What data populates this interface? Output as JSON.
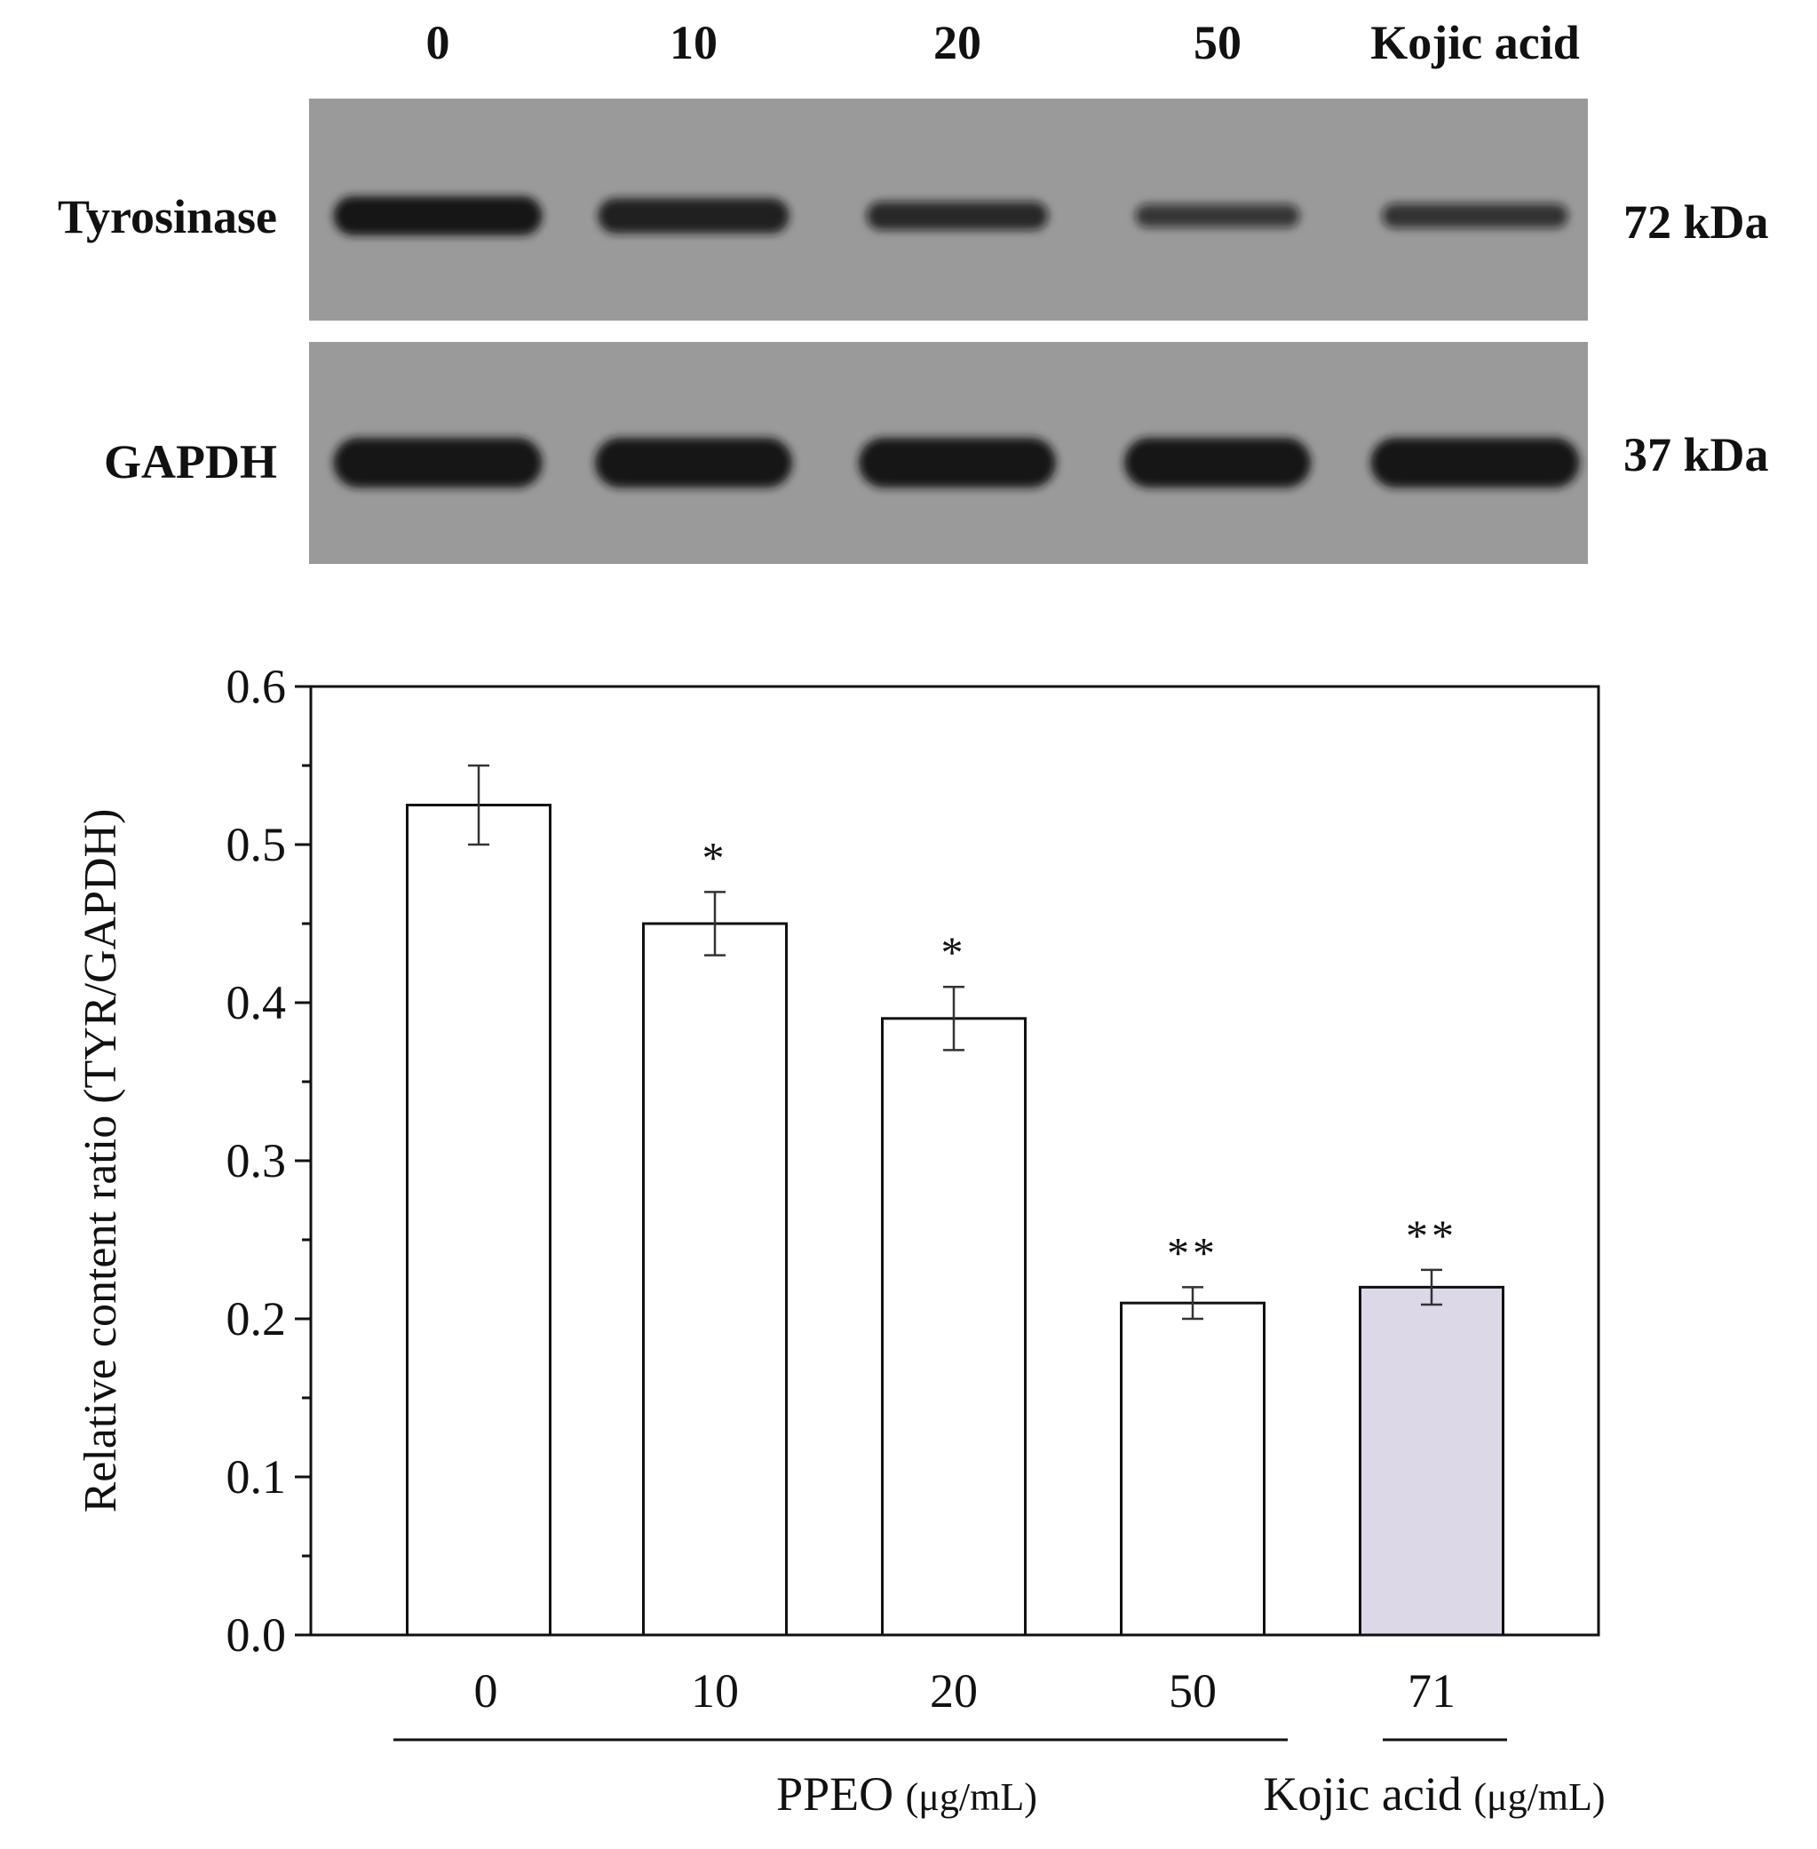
{
  "blot": {
    "lanes": [
      "0",
      "10",
      "20",
      "50",
      "Kojic acid"
    ],
    "proteins": [
      {
        "name": "Tyrosinase",
        "size": "72 kDa",
        "intensities": [
          1.0,
          0.85,
          0.6,
          0.4,
          0.45
        ]
      },
      {
        "name": "GAPDH",
        "size": "37 kDa",
        "intensities": [
          1.0,
          1.0,
          1.0,
          1.0,
          1.0
        ]
      }
    ],
    "colors": {
      "membrane": "#9a9a9a",
      "band": "#141414"
    }
  },
  "chart_data": {
    "type": "bar",
    "categories": [
      "0",
      "10",
      "20",
      "50",
      "71"
    ],
    "values": [
      0.525,
      0.45,
      0.39,
      0.21,
      0.22
    ],
    "errors": [
      0.025,
      0.02,
      0.02,
      0.01,
      0.011
    ],
    "significance": [
      "",
      "*",
      "*",
      "**",
      "**"
    ],
    "bar_colors": [
      "#ffffff",
      "#ffffff",
      "#ffffff",
      "#ffffff",
      "#dcd8e8"
    ],
    "ylabel": "Relative content ratio (TYR/GAPDH)",
    "ylim": [
      0,
      0.6
    ],
    "yticks": [
      "0.0",
      "0.1",
      "0.2",
      "0.3",
      "0.4",
      "0.5",
      "0.6"
    ],
    "groups": [
      {
        "name": "PPEO",
        "unit": "(μg/mL)",
        "categories": [
          "0",
          "10",
          "20",
          "50"
        ]
      },
      {
        "name": "Kojic acid",
        "unit": "(μg/mL)",
        "categories": [
          "71"
        ]
      }
    ],
    "grid": false
  }
}
